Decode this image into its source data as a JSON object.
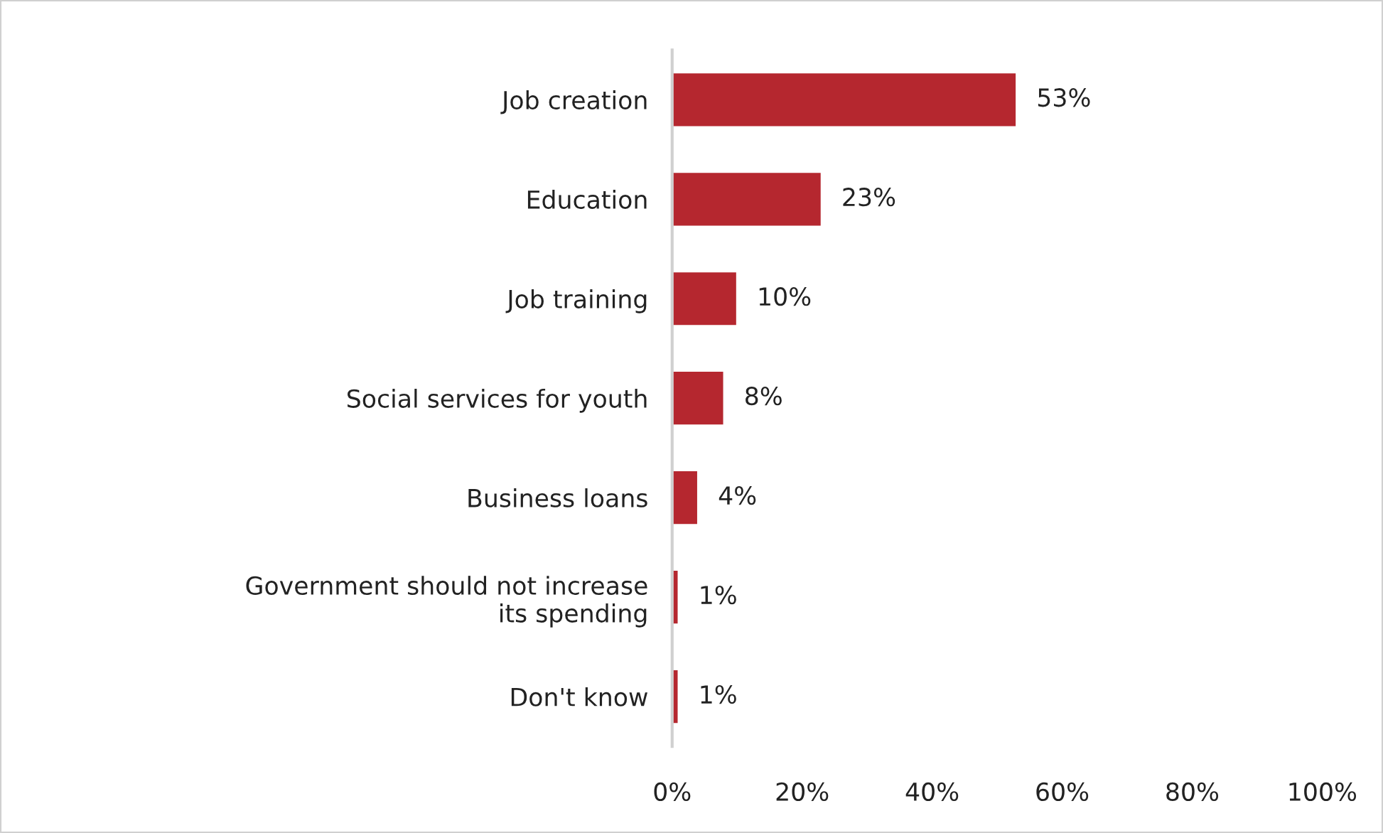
{
  "chart_data": {
    "type": "bar",
    "orientation": "horizontal",
    "categories": [
      "Job creation",
      "Education",
      "Job training",
      "Social services for youth",
      "Business loans",
      "Government should not increase\nits spending",
      "Don't know"
    ],
    "values": [
      53,
      23,
      10,
      8,
      4,
      1,
      1
    ],
    "value_labels": [
      "53%",
      "23%",
      "10%",
      "8%",
      "4%",
      "1%",
      "1%"
    ],
    "color": "#b5272f",
    "xlim": [
      0,
      100
    ],
    "xticks": [
      {
        "value": 0,
        "label": "0%"
      },
      {
        "value": 20,
        "label": "20%"
      },
      {
        "value": 40,
        "label": "40%"
      },
      {
        "value": 60,
        "label": "60%"
      },
      {
        "value": 80,
        "label": "80%"
      },
      {
        "value": 100,
        "label": "100%"
      }
    ],
    "grid": false,
    "legend": false
  }
}
